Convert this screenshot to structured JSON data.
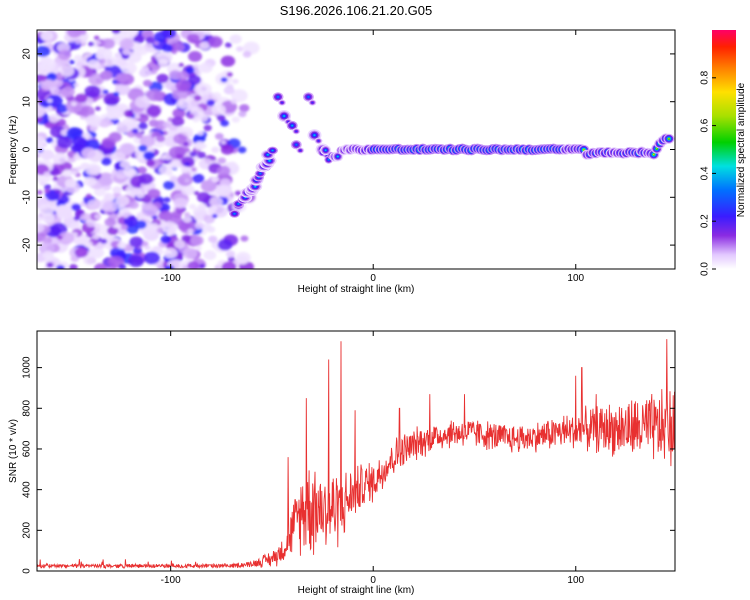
{
  "title": "S196.2026.106.21.20.G05",
  "colorbar": {
    "label": "Normalized spectral amplitude",
    "ticks": [
      "0.0",
      "0.2",
      "0.4",
      "0.6",
      "0.8"
    ],
    "tick_values": [
      0.0,
      0.2,
      0.4,
      0.6,
      0.8
    ],
    "range": [
      0,
      1
    ]
  },
  "chart_data": [
    {
      "type": "heatmap",
      "name": "spectrogram",
      "xlabel": "Height of straight line (km)",
      "ylabel": "Frequency (Hz)",
      "xlim": [
        -166,
        149
      ],
      "ylim": [
        -25,
        25
      ],
      "xticks": [
        -100,
        0,
        100
      ],
      "xtick_labels": [
        "-100",
        "0",
        "100"
      ],
      "yticks": [
        -20,
        -10,
        0,
        10,
        20
      ],
      "ytick_labels": [
        "-20",
        "-10",
        "0",
        "10",
        "20"
      ],
      "features": {
        "noise_region_x": [
          -166,
          -65
        ],
        "rising_trace": [
          [
            -68,
            -13
          ],
          [
            -62,
            -9
          ],
          [
            -57,
            -6
          ],
          [
            -53,
            -3
          ],
          [
            -50,
            0
          ]
        ],
        "scattered_blobs": [
          [
            -47,
            11
          ],
          [
            -44,
            7
          ],
          [
            -40,
            5
          ],
          [
            -32,
            11
          ],
          [
            -38,
            1
          ],
          [
            -29,
            3
          ],
          [
            -25,
            0
          ]
        ],
        "carrier_line": {
          "x_start": -25,
          "x_end": 147,
          "freq_hz": 0,
          "peak_amplitude": 1.0
        }
      }
    },
    {
      "type": "line",
      "name": "snr",
      "xlabel": "Height of straight line (km)",
      "ylabel": "SNR (10 * v/v)",
      "xlim": [
        -166,
        149
      ],
      "ylim": [
        0,
        1180
      ],
      "xticks": [
        -100,
        0,
        100
      ],
      "xtick_labels": [
        "-100",
        "0",
        "100"
      ],
      "yticks": [
        0,
        200,
        400,
        600,
        800,
        1000
      ],
      "ytick_labels": [
        "0",
        "200",
        "400",
        "600",
        "800",
        "1000"
      ],
      "color": "#e83030",
      "envelope": {
        "x": [
          -166,
          -70,
          -60,
          -50,
          -45,
          -40,
          -35,
          -30,
          -25,
          -20,
          -15,
          -10,
          -5,
          0,
          10,
          20,
          30,
          40,
          50,
          60,
          70,
          80,
          90,
          100,
          110,
          120,
          130,
          140,
          149
        ],
        "mean": [
          25,
          25,
          35,
          60,
          100,
          200,
          300,
          330,
          300,
          300,
          320,
          380,
          420,
          440,
          560,
          620,
          660,
          680,
          680,
          660,
          650,
          660,
          680,
          690,
          700,
          700,
          700,
          700,
          700
        ],
        "spread": [
          10,
          10,
          15,
          40,
          60,
          120,
          200,
          250,
          180,
          200,
          160,
          120,
          110,
          100,
          90,
          80,
          70,
          70,
          70,
          70,
          70,
          70,
          80,
          90,
          110,
          130,
          150,
          170,
          200
        ]
      },
      "peaks": [
        [
          -42,
          560
        ],
        [
          -33,
          850
        ],
        [
          -22,
          1040
        ],
        [
          -16,
          1130
        ],
        [
          -9,
          790
        ],
        [
          13,
          800
        ],
        [
          28,
          870
        ],
        [
          45,
          870
        ],
        [
          100,
          960
        ],
        [
          103,
          1000
        ],
        [
          110,
          870
        ],
        [
          145,
          1140
        ]
      ]
    }
  ]
}
